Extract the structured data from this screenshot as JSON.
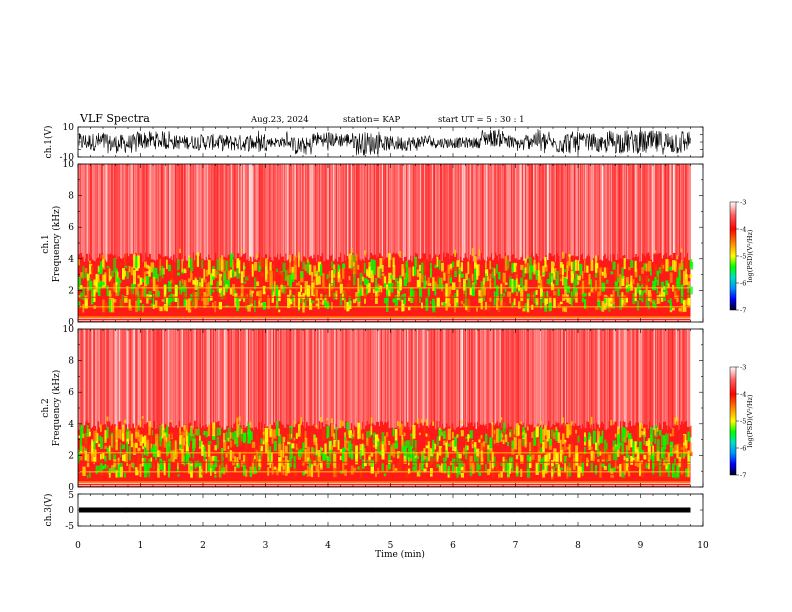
{
  "header": {
    "title": "VLF Spectra",
    "date": "Aug.23, 2024",
    "station": "station= KAP",
    "start": "start  UT =  5 : 30 : 1"
  },
  "chart_data": [
    {
      "type": "line",
      "panel": "ch1-waveform",
      "ylabel": "ch.1(V)",
      "ylim": [
        -10,
        10
      ],
      "yticks": [
        "10",
        "-10"
      ],
      "xlim": [
        0,
        10
      ]
    },
    {
      "type": "heatmap",
      "panel": "ch1-spectrogram",
      "ylabel_top": "ch.1",
      "ylabel": "Frequency  (kHz)",
      "ylim": [
        0,
        10
      ],
      "yticks": [
        "0",
        "2",
        "4",
        "6",
        "8",
        "10"
      ],
      "xlim": [
        0,
        10
      ],
      "data_end_min": 9.8,
      "intense_band_khz": [
        0.6,
        3.5
      ],
      "colorbar": {
        "label": "log(PSD)(V²/Hz)",
        "ticks": [
          "-3",
          "-4",
          "-5",
          "-6",
          "-7"
        ],
        "range": [
          -7,
          -3
        ]
      }
    },
    {
      "type": "heatmap",
      "panel": "ch2-spectrogram",
      "ylabel_top": "ch.2",
      "ylabel": "Frequency  (kHz)",
      "ylim": [
        0,
        10
      ],
      "yticks": [
        "0",
        "2",
        "4",
        "6",
        "8",
        "10"
      ],
      "xlim": [
        0,
        10
      ],
      "data_end_min": 9.8,
      "intense_band_khz": [
        0.5,
        3.3
      ],
      "colorbar": {
        "label": "log(PSD)(V²/Hz)",
        "ticks": [
          "-3",
          "-4",
          "-5",
          "-6",
          "-7"
        ],
        "range": [
          -7,
          -3
        ]
      }
    },
    {
      "type": "line",
      "panel": "ch3-waveform",
      "ylabel": "ch.3(V)",
      "ylim": [
        -5,
        5
      ],
      "yticks": [
        "5",
        "0",
        "-5"
      ],
      "xlim": [
        0,
        10
      ],
      "baseline_v": 0,
      "xlabel": "Time  (min)",
      "xticks": [
        "0",
        "1",
        "2",
        "3",
        "4",
        "5",
        "6",
        "7",
        "8",
        "9",
        "10"
      ]
    }
  ],
  "colors": {
    "colormap": [
      "#ff0000",
      "#ff8800",
      "#ffff00",
      "#00ff00",
      "#00ccff",
      "#0000ff",
      "#000000"
    ],
    "trace": "#000000"
  }
}
